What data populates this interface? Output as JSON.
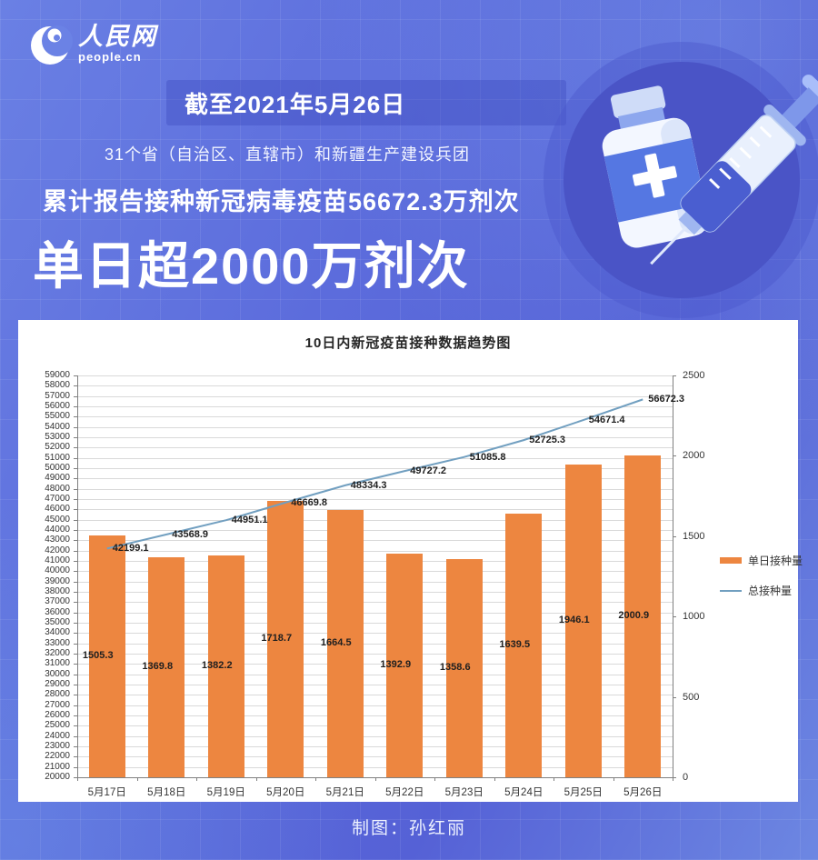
{
  "logo": {
    "brand": "人民网",
    "domain": "people.cn"
  },
  "header": {
    "dateline": "截至2021年5月26日",
    "region_line": "31个省（自治区、直辖市）和新疆生产建设兵团",
    "cumulative_line": "累计报告接种新冠病毒疫苗56672.3万剂次",
    "headline": "单日超2000万剂次"
  },
  "chart_data": {
    "type": "bar",
    "combo": "bar+line",
    "title": "10日内新冠疫苗接种数据趋势图",
    "categories": [
      "5月17日",
      "5月18日",
      "5月19日",
      "5月20日",
      "5月21日",
      "5月22日",
      "5月23日",
      "5月24日",
      "5月25日",
      "5月26日"
    ],
    "series": [
      {
        "name": "单日接种量",
        "type": "bar",
        "axis": "right",
        "color": "#ED8640",
        "values": [
          1505.3,
          1369.8,
          1382.2,
          1718.7,
          1664.5,
          1392.9,
          1358.6,
          1639.5,
          1946.1,
          2000.9
        ]
      },
      {
        "name": "总接种量",
        "type": "line",
        "axis": "left",
        "color": "#719FC0",
        "values": [
          42199.1,
          43568.9,
          44951.1,
          46669.8,
          48334.3,
          49727.2,
          51085.8,
          52725.3,
          54671.4,
          56672.3
        ]
      }
    ],
    "left_axis": {
      "min": 20000,
      "max": 59000,
      "step": 1000
    },
    "right_axis": {
      "min": 0,
      "max": 2500,
      "step": 500
    },
    "legend_position": "right",
    "grid": true
  },
  "footer": {
    "credit": "制图：孙红丽"
  },
  "colors": {
    "bar": "#ED8640",
    "line": "#719FC0",
    "panel": "#ffffff",
    "background": "#5c6cdc"
  }
}
